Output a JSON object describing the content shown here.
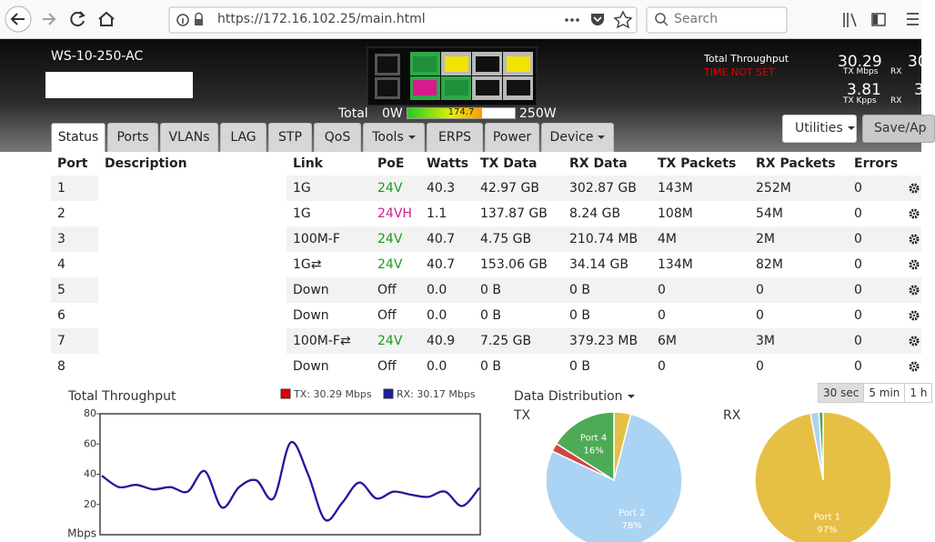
{
  "browser": {
    "url": "https://172.16.102.25/main.html",
    "search": "Search"
  },
  "header": {
    "device": "WS-10-250-AC",
    "total_label": "Total",
    "power": {
      "min": {
        "value": 0,
        "label": "0W"
      },
      "value": 174.7,
      "max": {
        "value": 250,
        "label": "250W"
      }
    },
    "throughput_title": "Total Throughput",
    "time_warning": "TIME NOT SET",
    "stats": [
      {
        "value": "30.29",
        "unit": "TX Mbps"
      },
      {
        "value": "30",
        "unit": "RX"
      },
      {
        "value": "3.81",
        "unit": "TX Kpps"
      },
      {
        "value": "3",
        "unit": "RX"
      }
    ]
  },
  "buttons": {
    "utilities": "Utilities",
    "save": "Save/Ap"
  },
  "tabs": [
    {
      "label": "Status"
    },
    {
      "label": "Ports"
    },
    {
      "label": "VLANs"
    },
    {
      "label": "LAG"
    },
    {
      "label": "STP"
    },
    {
      "label": "QoS"
    },
    {
      "label": "Tools",
      "dropdown": true
    },
    {
      "label": "ERPS"
    },
    {
      "label": "Power"
    },
    {
      "label": "Device",
      "dropdown": true
    }
  ],
  "table": {
    "columns": [
      "Port",
      "Description",
      "Link",
      "PoE",
      "Watts",
      "TX Data",
      "RX Data",
      "TX Packets",
      "RX Packets",
      "Errors"
    ],
    "rows": [
      [
        "1",
        "1G",
        "24V",
        "40.3",
        "42.97 GB",
        "302.87 GB",
        "143M",
        "252M",
        "0"
      ],
      [
        "2",
        "1G",
        "24VH",
        "1.1",
        "137.87 GB",
        "8.24 GB",
        "108M",
        "54M",
        "0"
      ],
      [
        "3",
        "100M-F",
        "24V",
        "40.7",
        "4.75 GB",
        "210.74 MB",
        "4M",
        "2M",
        "0"
      ],
      [
        "4",
        "1G⇄",
        "24V",
        "40.7",
        "153.06 GB",
        "34.14 GB",
        "134M",
        "82M",
        "0"
      ],
      [
        "5",
        "Down",
        "Off",
        "0.0",
        "0 B",
        "0 B",
        "0",
        "0",
        "0"
      ],
      [
        "6",
        "Down",
        "Off",
        "0.0",
        "0 B",
        "0 B",
        "0",
        "0",
        "0"
      ],
      [
        "7",
        "100M-F⇄",
        "24V",
        "40.9",
        "7.25 GB",
        "379.23 MB",
        "6M",
        "3M",
        "0"
      ],
      [
        "8",
        "Down",
        "Off",
        "0.0",
        "0 B",
        "0 B",
        "0",
        "0",
        "0"
      ]
    ],
    "poe_colors": [
      "#1e9a1e",
      "#d0228f",
      "#1e9a1e",
      "#1e9a1e",
      "#222222",
      "#222222",
      "#1e9a1e",
      "#222222"
    ]
  },
  "time_buttons": [
    "30 sec",
    "5 min",
    "1 h"
  ],
  "chart_data": [
    {
      "type": "line",
      "title": "Total Throughput",
      "ylabel": "Mbps",
      "ylim": [
        0,
        80
      ],
      "yticks": [
        20,
        40,
        60,
        80
      ],
      "series": [
        {
          "name": "TX: 30.29 Mbps",
          "color": "#e00000",
          "values": [
            39,
            31.5,
            33,
            30,
            31.5,
            28.5,
            42,
            18,
            31.5,
            36,
            24,
            61,
            40.5,
            10,
            21,
            34.5,
            24,
            28.5,
            26.5,
            25,
            28.5,
            19,
            31
          ]
        },
        {
          "name": "RX: 30.17 Mbps",
          "color": "#1c1ca8",
          "values": [
            39,
            31.5,
            33,
            30,
            31.5,
            28.5,
            42,
            18,
            31.5,
            36,
            24,
            61,
            40.5,
            10,
            21,
            34.5,
            24,
            28.5,
            26.5,
            25,
            28.5,
            19,
            31
          ]
        }
      ]
    },
    {
      "type": "pie",
      "title": "Data Distribution",
      "subtitle": "TX",
      "labels": [
        null,
        "Port 2",
        null,
        "Port 4"
      ],
      "values": [
        4,
        78,
        2,
        16
      ],
      "value_labels": [
        null,
        "78%",
        null,
        "16%"
      ],
      "colors": [
        "#e6bf45",
        "#abd3f3",
        "#d04545",
        "#4daa55"
      ]
    },
    {
      "type": "pie",
      "title": "RX",
      "labels": [
        "Port 1",
        null,
        null
      ],
      "values": [
        97,
        2,
        1
      ],
      "value_labels": [
        "97%",
        null,
        null
      ],
      "colors": [
        "#e6bf45",
        "#abd3f3",
        "#4daa55"
      ]
    }
  ]
}
